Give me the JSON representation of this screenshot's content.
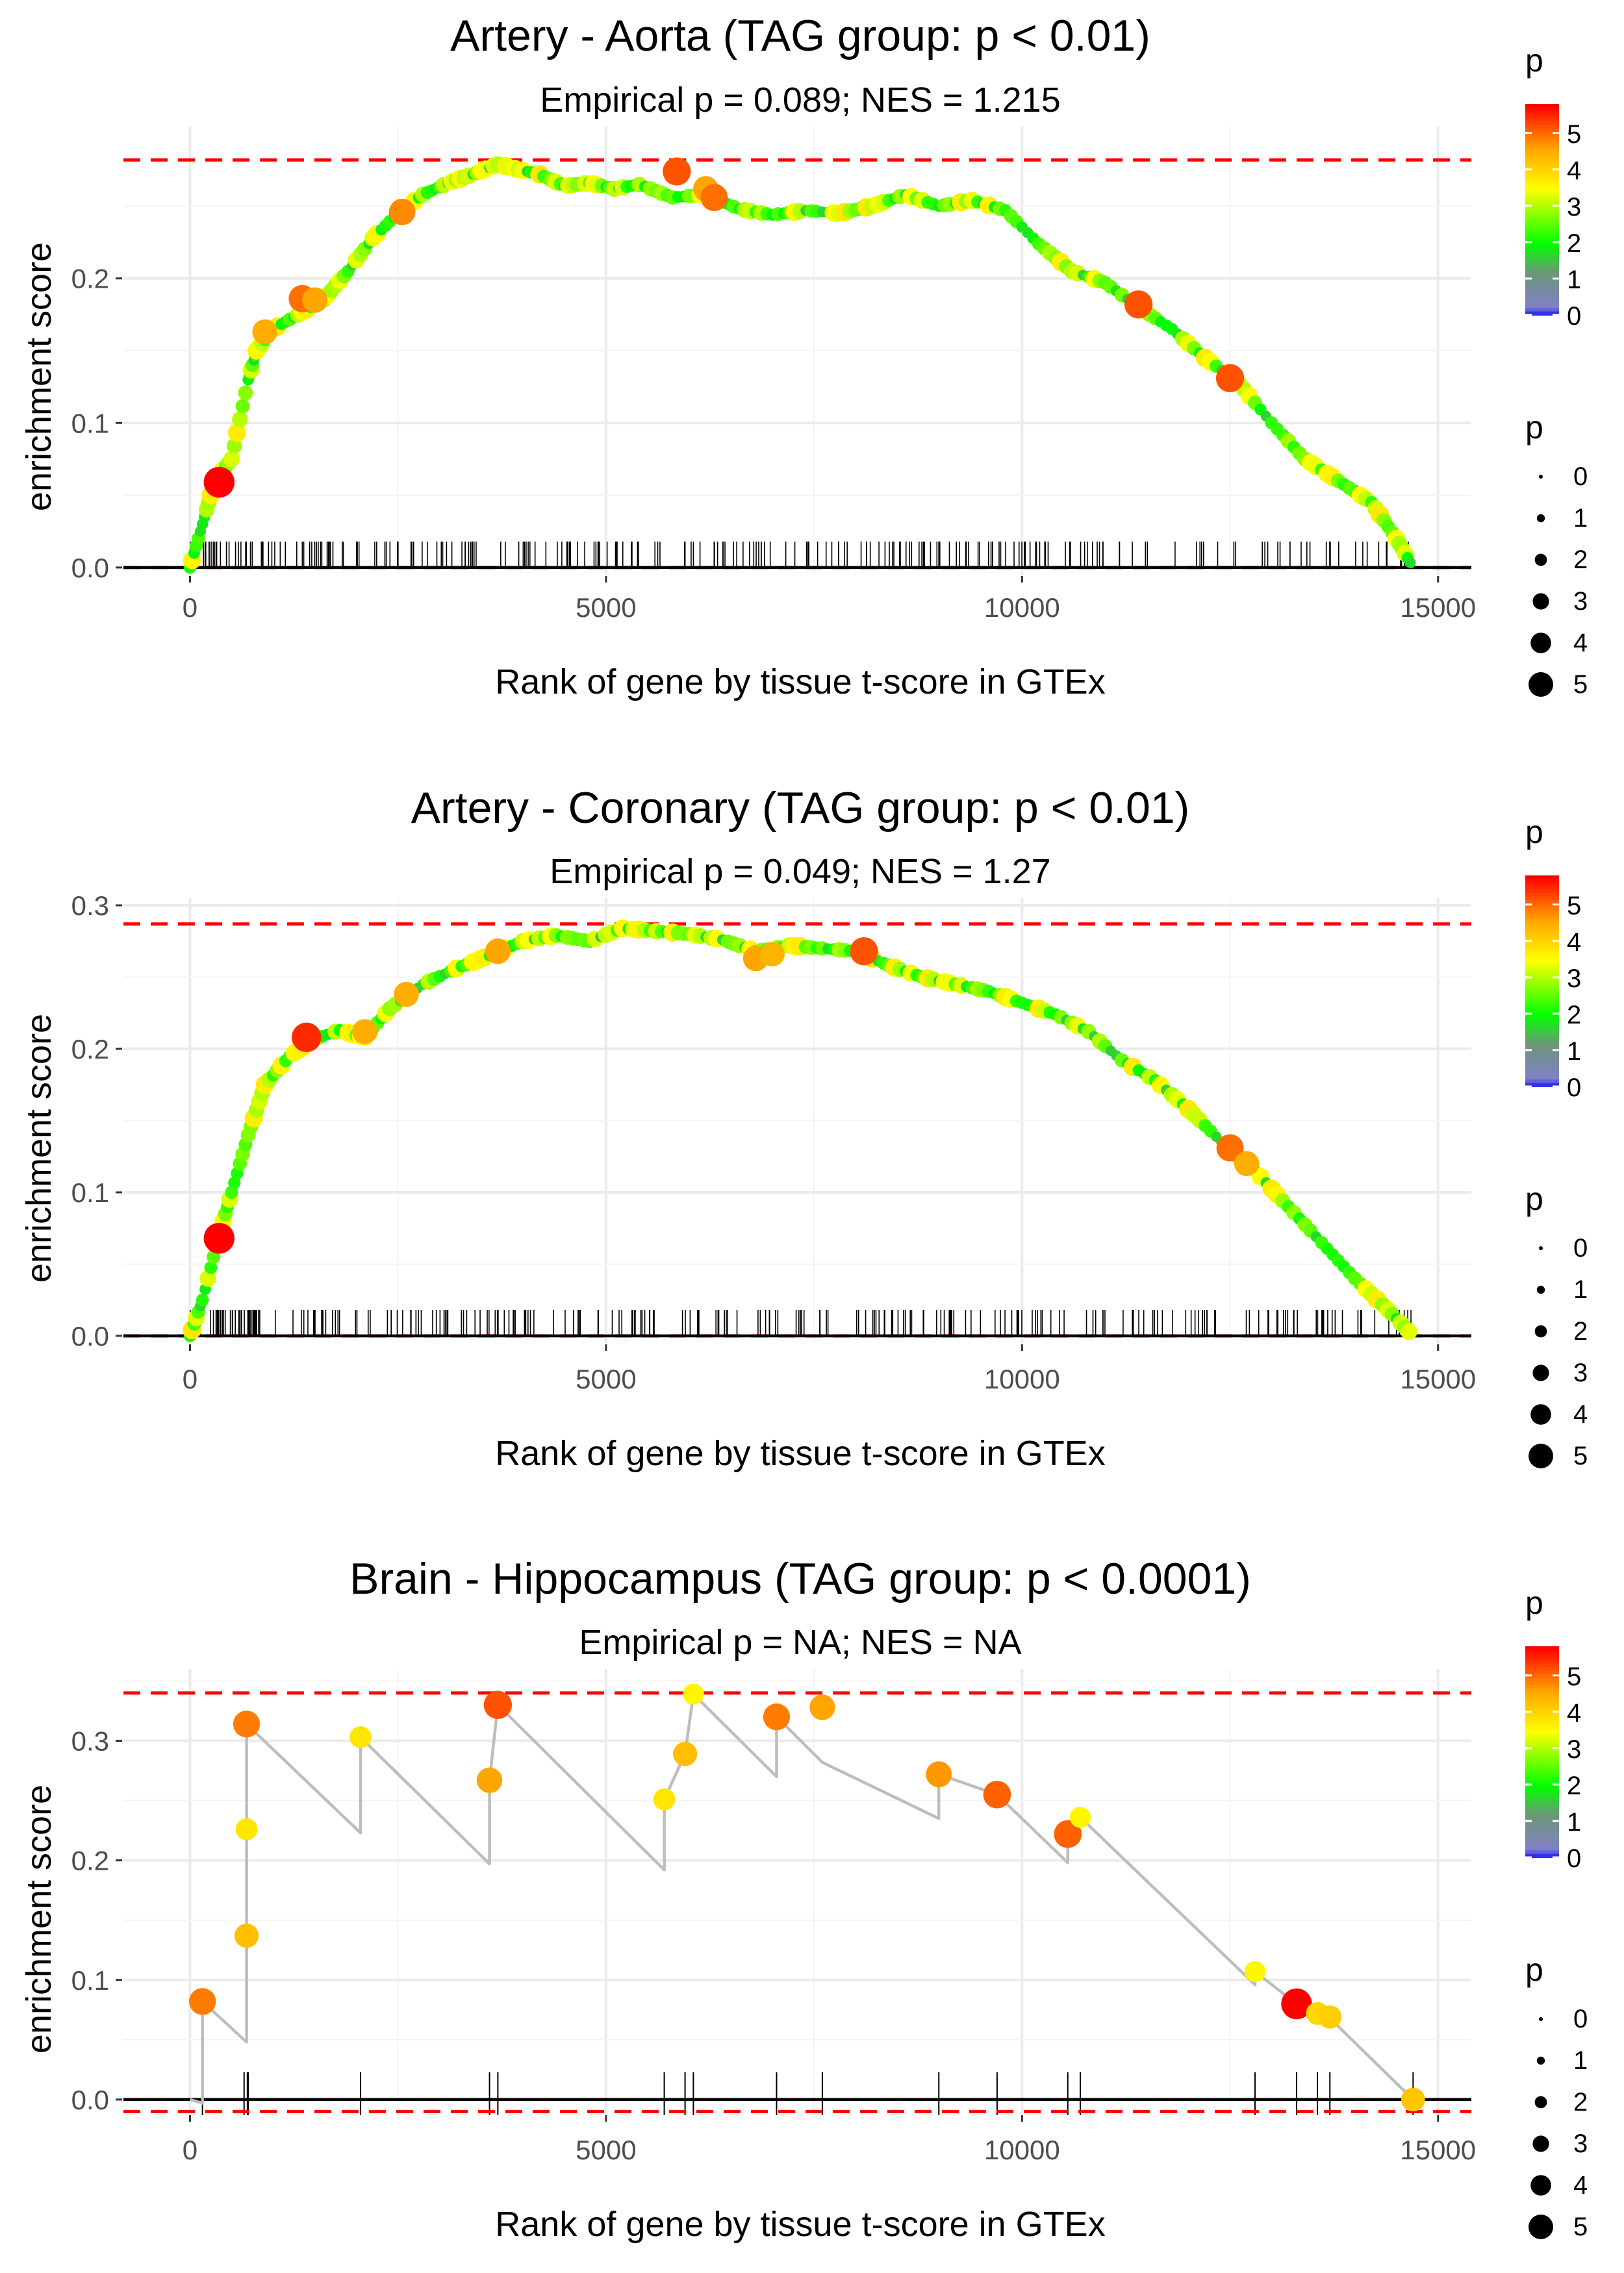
{
  "chart_data": [
    {
      "type": "line",
      "title": "Artery - Aorta (TAG group: p < 0.01)",
      "subtitle": "Empirical p = 0.089; NES = 1.215",
      "xlabel": "Rank of gene by tissue t-score in GTEx",
      "ylabel": "enrichment score",
      "xlim": [
        -800,
        15400
      ],
      "ylim": [
        -0.005,
        0.305
      ],
      "x_ticks": [
        0,
        5000,
        10000,
        15000
      ],
      "x_tick_labels": [
        "0",
        "5000",
        "10000",
        "15000"
      ],
      "y_ticks": [
        0,
        0.1,
        0.2
      ],
      "y_tick_labels": [
        "0.0",
        "0.1",
        "0.2"
      ],
      "grid": true,
      "hlines": [
        0.282,
        0
      ],
      "curve_x": [
        0,
        150,
        300,
        500,
        700,
        800,
        1000,
        1300,
        1600,
        1900,
        2200,
        2500,
        2800,
        3100,
        3400,
        3700,
        3900,
        4200,
        4500,
        4800,
        5100,
        5400,
        5800,
        6200,
        6600,
        7000,
        7400,
        7800,
        8200,
        8600,
        9000,
        9400,
        9800,
        10200,
        10600,
        11000,
        11400,
        11800,
        12200,
        12600,
        13000,
        13400,
        13800,
        14200,
        14500,
        14700
      ],
      "curve_y": [
        0,
        0.03,
        0.06,
        0.075,
        0.13,
        0.15,
        0.165,
        0.175,
        0.185,
        0.205,
        0.228,
        0.245,
        0.258,
        0.266,
        0.272,
        0.279,
        0.276,
        0.272,
        0.264,
        0.266,
        0.262,
        0.265,
        0.256,
        0.258,
        0.248,
        0.244,
        0.247,
        0.245,
        0.25,
        0.258,
        0.25,
        0.254,
        0.247,
        0.224,
        0.205,
        0.197,
        0.18,
        0.165,
        0.145,
        0.128,
        0.1,
        0.075,
        0.06,
        0.045,
        0.02,
        0
      ],
      "highlights": [
        {
          "x": 350,
          "y": 0.059,
          "p": 5.8
        },
        {
          "x": 900,
          "y": 0.163,
          "p": 4.5
        },
        {
          "x": 1350,
          "y": 0.186,
          "p": 5.0
        },
        {
          "x": 1500,
          "y": 0.185,
          "p": 4.6
        },
        {
          "x": 2550,
          "y": 0.246,
          "p": 4.8
        },
        {
          "x": 5850,
          "y": 0.274,
          "p": 5.2
        },
        {
          "x": 6200,
          "y": 0.262,
          "p": 4.6
        },
        {
          "x": 6300,
          "y": 0.256,
          "p": 5.0
        },
        {
          "x": 11400,
          "y": 0.182,
          "p": 5.2
        },
        {
          "x": 12500,
          "y": 0.131,
          "p": 5.2
        }
      ],
      "ticks_seed": 11,
      "ticks_density": 250,
      "ticks_range": [
        0,
        14700
      ],
      "legend_title": "p",
      "colorbar_labels": [
        "5",
        "4",
        "3",
        "2",
        "1",
        "0"
      ],
      "size_labels": [
        "0",
        "1",
        "2",
        "3",
        "4",
        "5"
      ]
    },
    {
      "type": "line",
      "title": "Artery - Coronary (TAG group: p < 0.01)",
      "subtitle": "Empirical p = 0.049; NES = 1.27",
      "xlabel": "Rank of gene by tissue t-score in GTEx",
      "ylabel": "enrichment score",
      "xlim": [
        -800,
        15400
      ],
      "ylim": [
        -0.005,
        0.305
      ],
      "x_ticks": [
        0,
        5000,
        10000,
        15000
      ],
      "x_tick_labels": [
        "0",
        "5000",
        "10000",
        "15000"
      ],
      "y_ticks": [
        0,
        0.1,
        0.2,
        0.3
      ],
      "y_tick_labels": [
        "0.0",
        "0.1",
        "0.2",
        "0.3"
      ],
      "grid": true,
      "hlines": [
        0.287,
        0
      ],
      "curve_x": [
        0,
        150,
        350,
        500,
        700,
        900,
        1200,
        1500,
        1800,
        2100,
        2400,
        2800,
        3200,
        3600,
        4000,
        4400,
        4800,
        5200,
        5600,
        6000,
        6400,
        6800,
        7200,
        7600,
        8000,
        8400,
        8800,
        9200,
        9600,
        10000,
        10400,
        10800,
        11200,
        11600,
        12000,
        12400,
        12800,
        13200,
        13600,
        14000,
        14400,
        14700
      ],
      "curve_y": [
        0,
        0.025,
        0.07,
        0.1,
        0.14,
        0.175,
        0.195,
        0.207,
        0.213,
        0.208,
        0.228,
        0.245,
        0.256,
        0.265,
        0.275,
        0.279,
        0.275,
        0.284,
        0.282,
        0.28,
        0.276,
        0.268,
        0.272,
        0.27,
        0.268,
        0.258,
        0.25,
        0.245,
        0.24,
        0.232,
        0.224,
        0.212,
        0.192,
        0.178,
        0.158,
        0.135,
        0.115,
        0.09,
        0.065,
        0.04,
        0.018,
        0
      ],
      "highlights": [
        {
          "x": 350,
          "y": 0.068,
          "p": 5.8
        },
        {
          "x": 1400,
          "y": 0.208,
          "p": 5.5
        },
        {
          "x": 2100,
          "y": 0.212,
          "p": 4.5
        },
        {
          "x": 2600,
          "y": 0.238,
          "p": 4.5
        },
        {
          "x": 3700,
          "y": 0.268,
          "p": 4.6
        },
        {
          "x": 6800,
          "y": 0.263,
          "p": 4.6
        },
        {
          "x": 7000,
          "y": 0.266,
          "p": 4.4
        },
        {
          "x": 8100,
          "y": 0.268,
          "p": 5.2
        },
        {
          "x": 12500,
          "y": 0.131,
          "p": 5.0
        },
        {
          "x": 12700,
          "y": 0.12,
          "p": 4.5
        }
      ],
      "ticks_seed": 23,
      "ticks_density": 260,
      "ticks_range": [
        0,
        14700
      ],
      "legend_title": "p",
      "colorbar_labels": [
        "5",
        "4",
        "3",
        "2",
        "1",
        "0"
      ],
      "size_labels": [
        "0",
        "1",
        "2",
        "3",
        "4",
        "5"
      ]
    },
    {
      "type": "line",
      "title": "Brain - Hippocampus (TAG group: p < 0.0001)",
      "subtitle": "Empirical p = NA; NES = NA",
      "xlabel": "Rank of gene by tissue t-score in GTEx",
      "ylabel": "enrichment score",
      "xlim": [
        -800,
        15400
      ],
      "ylim": [
        -0.012,
        0.36
      ],
      "x_ticks": [
        0,
        5000,
        10000,
        15000
      ],
      "x_tick_labels": [
        "0",
        "5000",
        "10000",
        "15000"
      ],
      "y_ticks": [
        0,
        0.1,
        0.2,
        0.3
      ],
      "y_tick_labels": [
        "0.0",
        "0.1",
        "0.2",
        "0.3"
      ],
      "grid": true,
      "hlines": [
        0.34,
        -0.01
      ],
      "curve_x": [
        0,
        150,
        150,
        680,
        680,
        680,
        680,
        2050,
        2050,
        3600,
        3600,
        3700,
        5700,
        5700,
        5950,
        6050,
        7050,
        7050,
        7600,
        9000,
        9000,
        9700,
        10550,
        10550,
        10700,
        12800,
        12800,
        13300,
        13550,
        13700,
        14700
      ],
      "curve_y": [
        0,
        -0.003,
        0.082,
        0.048,
        0.137,
        0.226,
        0.314,
        0.223,
        0.303,
        0.197,
        0.267,
        0.33,
        0.192,
        0.251,
        0.289,
        0.339,
        0.27,
        0.32,
        0.282,
        0.235,
        0.272,
        0.255,
        0.198,
        0.222,
        0.236,
        0.096,
        0.107,
        0.08,
        0.07,
        0.068,
        0
      ],
      "highlights": [
        {
          "x": 150,
          "y": 0.082,
          "p": 4.9
        },
        {
          "x": 680,
          "y": 0.137,
          "p": 4.3
        },
        {
          "x": 680,
          "y": 0.226,
          "p": 3.8
        },
        {
          "x": 680,
          "y": 0.314,
          "p": 4.9
        },
        {
          "x": 2050,
          "y": 0.303,
          "p": 3.8
        },
        {
          "x": 3600,
          "y": 0.267,
          "p": 4.6
        },
        {
          "x": 3700,
          "y": 0.33,
          "p": 5.2
        },
        {
          "x": 5700,
          "y": 0.251,
          "p": 3.8
        },
        {
          "x": 5950,
          "y": 0.289,
          "p": 4.3
        },
        {
          "x": 6050,
          "y": 0.339,
          "p": 3.6
        },
        {
          "x": 7050,
          "y": 0.32,
          "p": 4.9
        },
        {
          "x": 7600,
          "y": 0.328,
          "p": 4.6
        },
        {
          "x": 9000,
          "y": 0.272,
          "p": 4.7
        },
        {
          "x": 9700,
          "y": 0.255,
          "p": 5.1
        },
        {
          "x": 10550,
          "y": 0.222,
          "p": 5.1
        },
        {
          "x": 10700,
          "y": 0.236,
          "p": 3.6
        },
        {
          "x": 12800,
          "y": 0.107,
          "p": 3.6
        },
        {
          "x": 13300,
          "y": 0.08,
          "p": 5.8
        },
        {
          "x": 13550,
          "y": 0.072,
          "p": 4.0
        },
        {
          "x": 13700,
          "y": 0.069,
          "p": 4.1
        },
        {
          "x": 14700,
          "y": 0.0,
          "p": 4.2
        }
      ],
      "rug": [
        150,
        650,
        690,
        700,
        2050,
        3600,
        3700,
        5700,
        5950,
        6050,
        7050,
        7600,
        9000,
        9700,
        10550,
        10700,
        12800,
        13300,
        13550,
        13700,
        14700
      ],
      "legend_title": "p",
      "colorbar_labels": [
        "5",
        "4",
        "3",
        "2",
        "1",
        "0"
      ],
      "size_labels": [
        "0",
        "1",
        "2",
        "3",
        "4",
        "5"
      ]
    }
  ]
}
